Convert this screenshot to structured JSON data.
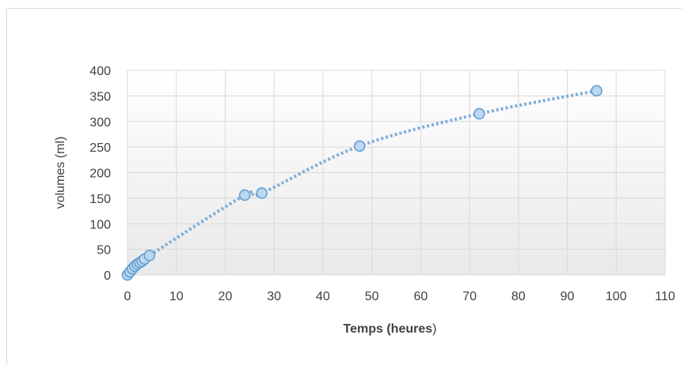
{
  "chart_data": {
    "type": "scatter",
    "title": "",
    "xlabel": "Temps (heures)",
    "xlabel_bold": "Temps (heures",
    "xlabel_tail": ")",
    "ylabel": "volumes (ml)",
    "xlim": [
      0,
      110
    ],
    "ylim": [
      0,
      400
    ],
    "xticks": [
      0,
      10,
      20,
      30,
      40,
      50,
      60,
      70,
      80,
      90,
      100,
      110
    ],
    "yticks": [
      0,
      50,
      100,
      150,
      200,
      250,
      300,
      350,
      400
    ],
    "grid": true,
    "legend": false,
    "trendline": "dotted smooth curve",
    "series": [
      {
        "x": [
          0,
          0.5,
          1,
          1.5,
          2,
          2.5,
          3,
          3.5,
          4.5,
          24,
          27.5,
          47.5,
          72,
          96
        ],
        "y": [
          0,
          6,
          12,
          17,
          21,
          24,
          27,
          31,
          38,
          156,
          160,
          252,
          315,
          360
        ]
      }
    ],
    "colors": {
      "marker_fill": "#bdd7ee",
      "marker_stroke": "#5b9bd5",
      "trendline": "#7faedc",
      "grid": "#d9d9d9",
      "plot_top": "#ffffff",
      "plot_bottom": "#e9e9e9"
    }
  }
}
